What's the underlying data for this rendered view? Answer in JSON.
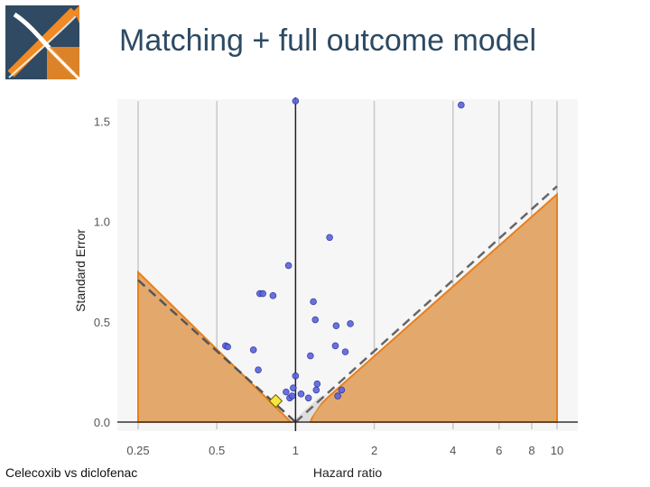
{
  "slide": {
    "title": "Matching + full outcome model",
    "caption": "Celecoxib vs diclofenac"
  },
  "colors": {
    "title": "#2d4a63",
    "shade_fill": "#e3a86b",
    "shade_line": "#e6801f",
    "points": "#5a63e0",
    "estimate": "#f5e642",
    "logo_dark": "#2f4a62",
    "logo_orange": "#f08a24"
  },
  "chart_data": {
    "type": "scatter",
    "xlabel": "Hazard ratio",
    "ylabel": "Standard Error",
    "xscale": "log",
    "xlim": [
      0.25,
      10
    ],
    "ylim": [
      0,
      1.6
    ],
    "x_ticks": [
      0.25,
      0.5,
      1,
      2,
      4,
      6,
      8,
      10
    ],
    "x_tick_labels": [
      "0.25",
      "0.5",
      "1",
      "2",
      "4",
      "6",
      "8",
      "10"
    ],
    "y_ticks": [
      0.0,
      0.5,
      1.0,
      1.5
    ],
    "y_tick_labels": [
      "0.0",
      "0.5",
      "1.0",
      "1.5"
    ],
    "reference_line_x": 1,
    "grid": true,
    "negative_controls": [
      {
        "x": 0.54,
        "y": 0.38
      },
      {
        "x": 0.55,
        "y": 0.375
      },
      {
        "x": 0.69,
        "y": 0.36
      },
      {
        "x": 0.72,
        "y": 0.26
      },
      {
        "x": 0.73,
        "y": 0.64
      },
      {
        "x": 0.75,
        "y": 0.64
      },
      {
        "x": 0.82,
        "y": 0.63
      },
      {
        "x": 0.92,
        "y": 0.15
      },
      {
        "x": 0.94,
        "y": 0.78
      },
      {
        "x": 0.95,
        "y": 0.12
      },
      {
        "x": 0.97,
        "y": 0.13
      },
      {
        "x": 0.98,
        "y": 0.17
      },
      {
        "x": 1.0,
        "y": 0.23
      },
      {
        "x": 1.0,
        "y": 1.6
      },
      {
        "x": 1.05,
        "y": 0.14
      },
      {
        "x": 1.12,
        "y": 0.12
      },
      {
        "x": 1.14,
        "y": 0.33
      },
      {
        "x": 1.17,
        "y": 0.6
      },
      {
        "x": 1.19,
        "y": 0.51
      },
      {
        "x": 1.2,
        "y": 0.16
      },
      {
        "x": 1.21,
        "y": 0.19
      },
      {
        "x": 1.35,
        "y": 0.92
      },
      {
        "x": 1.42,
        "y": 0.38
      },
      {
        "x": 1.43,
        "y": 0.48
      },
      {
        "x": 1.45,
        "y": 0.13
      },
      {
        "x": 1.5,
        "y": 0.16
      },
      {
        "x": 1.55,
        "y": 0.35
      },
      {
        "x": 1.62,
        "y": 0.49
      },
      {
        "x": 4.3,
        "y": 1.58
      }
    ],
    "estimate": {
      "x": 0.84,
      "y": 0.105
    },
    "significance_boundary_dashed": true,
    "calibrated_boundary_filled": true
  }
}
